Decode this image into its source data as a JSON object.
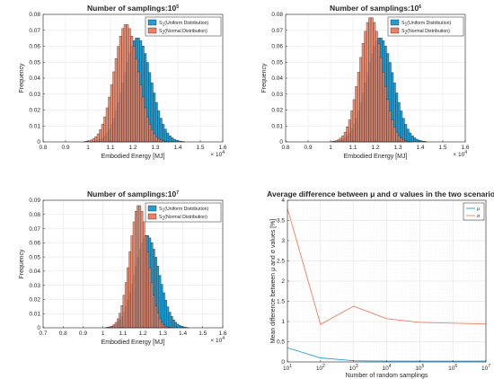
{
  "chart_data": [
    {
      "id": "hist1",
      "type": "bar",
      "title": "Number of samplings:10",
      "title_exp": "5",
      "xlabel": "Embodied Energy [MJ]",
      "ylabel": "Frequency",
      "x_multiplier": "× 10",
      "x_multiplier_exp": "4",
      "xlim": [
        0.8,
        1.6
      ],
      "ylim": [
        0,
        0.08
      ],
      "xticks": [
        "0.8",
        "0.9",
        "1",
        "1.1",
        "1.2",
        "1.3",
        "1.4",
        "1.5",
        "1.6"
      ],
      "yticks": [
        "0",
        "0.01",
        "0.02",
        "0.03",
        "0.04",
        "0.05",
        "0.06",
        "0.07",
        "0.08"
      ],
      "grid": true,
      "legend": "top-right",
      "bin_width": 0.01,
      "series": [
        {
          "name_prefix": "S",
          "name_sub": "1",
          "name": "(Uniform Distribution)",
          "mean": 1.22,
          "sd": 0.061,
          "color": "#1f9fd6"
        },
        {
          "name_prefix": "S",
          "name_sub": "2",
          "name": "(Normal Distribution)",
          "mean": 1.17,
          "sd": 0.054,
          "color": "#f08060"
        }
      ]
    },
    {
      "id": "hist2",
      "type": "bar",
      "title": "Number of samplings:10",
      "title_exp": "6",
      "xlabel": "Embodied Energy [MJ]",
      "ylabel": "Frequency",
      "x_multiplier": "× 10",
      "x_multiplier_exp": "4",
      "xlim": [
        0.8,
        1.6
      ],
      "ylim": [
        0,
        0.08
      ],
      "xticks": [
        "0.8",
        "0.9",
        "1",
        "1.1",
        "1.2",
        "1.3",
        "1.4",
        "1.5",
        "1.6"
      ],
      "yticks": [
        "0",
        "0.01",
        "0.02",
        "0.03",
        "0.04",
        "0.05",
        "0.06",
        "0.07",
        "0.08"
      ],
      "grid": true,
      "legend": "top-right",
      "bin_width": 0.01,
      "series": [
        {
          "name_prefix": "S",
          "name_sub": "1",
          "name": "(Uniform Distribution)",
          "mean": 1.22,
          "sd": 0.061,
          "color": "#1f9fd6"
        },
        {
          "name_prefix": "S",
          "name_sub": "2",
          "name": "(Normal Distribution)",
          "mean": 1.18,
          "sd": 0.051,
          "color": "#f08060"
        }
      ]
    },
    {
      "id": "hist3",
      "type": "bar",
      "title": "Number of samplings:10",
      "title_exp": "7",
      "xlabel": "Embodied Energy [MJ]",
      "ylabel": "Frequency",
      "x_multiplier": "× 10",
      "x_multiplier_exp": "4",
      "xlim": [
        0.7,
        1.6
      ],
      "ylim": [
        0,
        0.09
      ],
      "xticks": [
        "0.7",
        "0.8",
        "0.9",
        "1",
        "1.1",
        "1.2",
        "1.3",
        "1.4",
        "1.5",
        "1.6"
      ],
      "yticks": [
        "0",
        "0.01",
        "0.02",
        "0.03",
        "0.04",
        "0.05",
        "0.06",
        "0.07",
        "0.08",
        "0.09"
      ],
      "grid": true,
      "legend": "top-right",
      "bin_width": 0.01,
      "series": [
        {
          "name_prefix": "S",
          "name_sub": "1",
          "name": "(Uniform Distribution)",
          "mean": 1.22,
          "sd": 0.061,
          "color": "#1f9fd6"
        },
        {
          "name_prefix": "S",
          "name_sub": "2",
          "name": "(Normal Distribution)",
          "mean": 1.18,
          "sd": 0.046,
          "color": "#f08060"
        }
      ]
    },
    {
      "id": "line1",
      "type": "line",
      "title": "Average difference between μ and σ values in the two scenarios",
      "xlabel": "Number of random samplings",
      "ylabel": "Mean difference between μ and σ values [%]",
      "x_scale": "log",
      "xlim": [
        10,
        10000000
      ],
      "ylim": [
        0,
        4
      ],
      "xticks": [
        {
          "base": "10",
          "exp": "1"
        },
        {
          "base": "10",
          "exp": "2"
        },
        {
          "base": "10",
          "exp": "3"
        },
        {
          "base": "10",
          "exp": "4"
        },
        {
          "base": "10",
          "exp": "5"
        },
        {
          "base": "10",
          "exp": "6"
        },
        {
          "base": "10",
          "exp": "7"
        }
      ],
      "yticks": [
        "0",
        "0.5",
        "1",
        "1.5",
        "2",
        "2.5",
        "3",
        "3.5",
        "4"
      ],
      "grid": true,
      "legend": "top-right",
      "x": [
        10,
        100,
        1000,
        10000,
        100000,
        1000000,
        10000000
      ],
      "series": [
        {
          "name": "μ",
          "values": [
            0.35,
            0.1,
            0.03,
            0.02,
            0.02,
            0.02,
            0.02
          ],
          "color": "#1f9fd6"
        },
        {
          "name": "σ",
          "values": [
            3.8,
            0.93,
            1.38,
            1.07,
            0.98,
            0.96,
            0.94
          ],
          "color": "#f08060"
        }
      ]
    }
  ]
}
